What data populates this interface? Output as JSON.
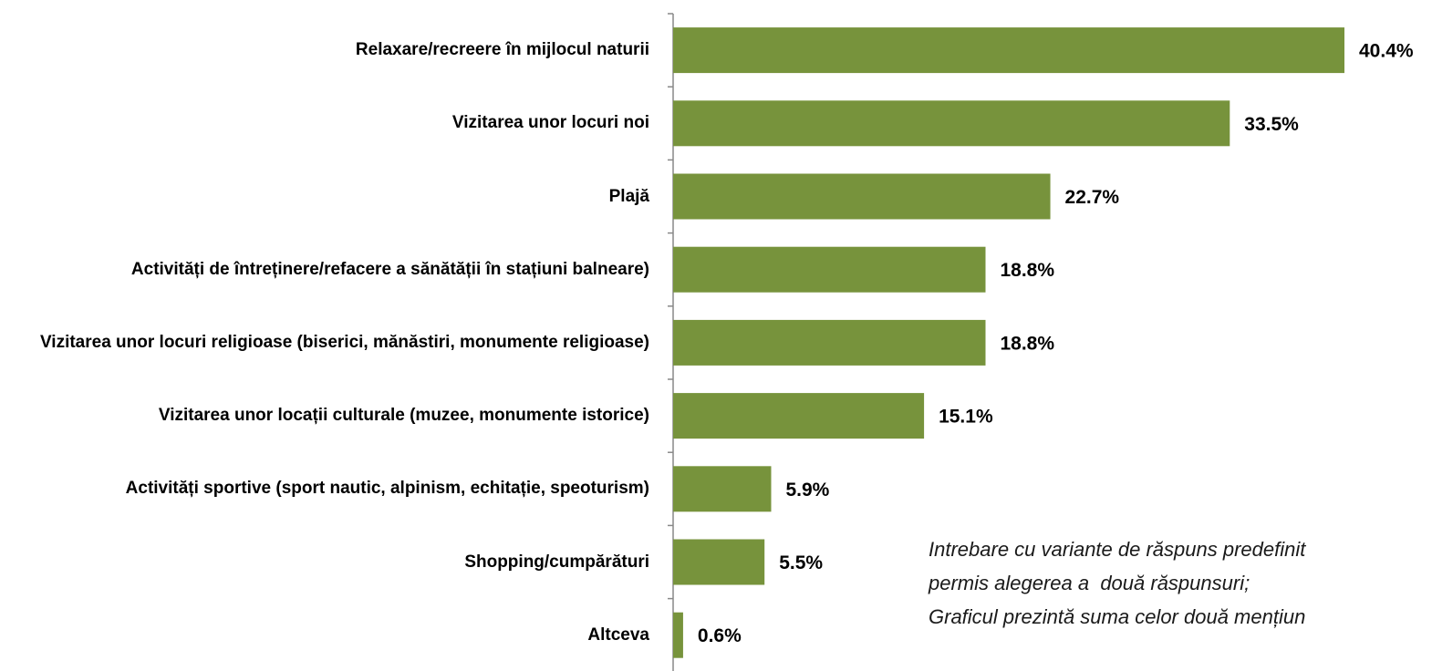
{
  "chart_data": {
    "type": "bar",
    "orientation": "horizontal",
    "categories": [
      "Relaxare/recreere în mijlocul naturii",
      "Vizitarea unor locuri noi",
      "Plajă",
      "Activități de întreținere/refacere a sănătății în stațiuni balneare)",
      "Vizitarea unor locuri religioase (biserici, mănăstiri, monumente religioase)",
      "Vizitarea unor locații culturale (muzee, monumente istorice)",
      "Activități sportive (sport nautic, alpinism, echitație, speoturism)",
      "Shopping/cumpărături",
      "Altceva"
    ],
    "values": [
      40.4,
      33.5,
      22.7,
      18.8,
      18.8,
      15.1,
      5.9,
      5.5,
      0.6
    ],
    "value_labels": [
      "40.4%",
      "33.5%",
      "22.7%",
      "18.8%",
      "18.8%",
      "15.1%",
      "5.9%",
      "5.5%",
      "0.6%"
    ],
    "color": "#77933c",
    "annotations": [
      "Intrebare cu variante de răspuns predefinit",
      "permis alegerea a  două răspunsuri;",
      "Graficul prezintă suma celor două mențiun"
    ]
  }
}
